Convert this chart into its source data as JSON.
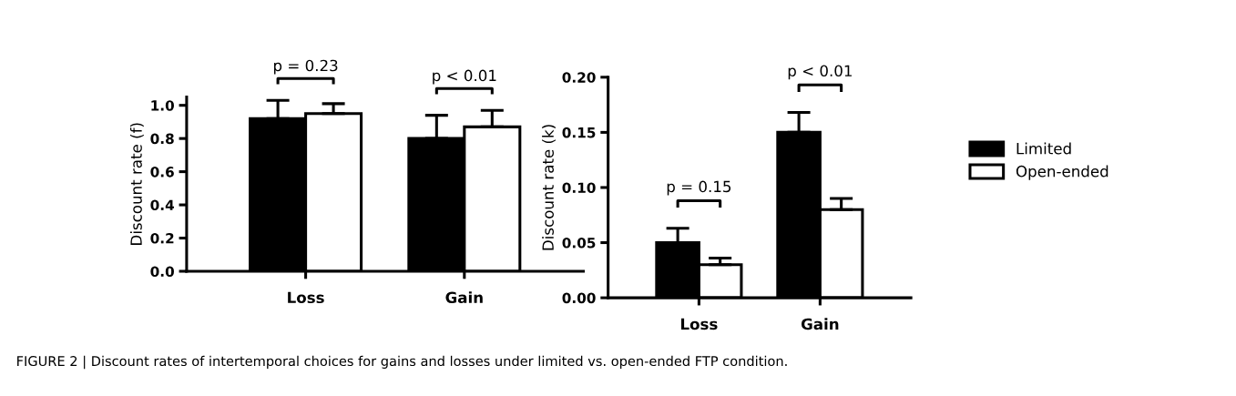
{
  "chart_data": [
    {
      "type": "bar",
      "ylabel": "Discount rate (f)",
      "categories": [
        "Loss",
        "Gain"
      ],
      "ylim": [
        0,
        1.05
      ],
      "yticks": [
        {
          "value": 0,
          "label": "0.0"
        },
        {
          "value": 0.2,
          "label": "0.2"
        },
        {
          "value": 0.4,
          "label": "0.4"
        },
        {
          "value": 0.6,
          "label": "0.6"
        },
        {
          "value": 0.8,
          "label": "0.8"
        },
        {
          "value": 1.0,
          "label": "1.0"
        }
      ],
      "series": [
        {
          "color": "#000000",
          "values": [
            0.92,
            0.8
          ],
          "errors": [
            [
              0.92,
              1.03
            ],
            [
              0.8,
              0.94
            ]
          ]
        },
        {
          "color": "#ffffff",
          "values": [
            0.95,
            0.87
          ],
          "errors": [
            [
              0.95,
              1.01
            ],
            [
              0.87,
              0.97
            ]
          ]
        }
      ],
      "annotations": [
        "p = 0.23",
        "p < 0.01"
      ],
      "grid": false,
      "legend": false
    },
    {
      "type": "bar",
      "ylabel": "Discount rate (k)",
      "categories": [
        "Loss",
        "Gain"
      ],
      "ylim": [
        0,
        0.2
      ],
      "yticks": [
        {
          "value": 0,
          "label": "0.00"
        },
        {
          "value": 0.05,
          "label": "0.05"
        },
        {
          "value": 0.1,
          "label": "0.10"
        },
        {
          "value": 0.15,
          "label": "0.15"
        },
        {
          "value": 0.2,
          "label": "0.20"
        }
      ],
      "series": [
        {
          "name": "Limited",
          "color": "#000000",
          "values": [
            0.05,
            0.15
          ],
          "errors": [
            [
              0.05,
              0.063
            ],
            [
              0.15,
              0.168
            ]
          ]
        },
        {
          "name": "Open-ended",
          "color": "#ffffff",
          "values": [
            0.03,
            0.08
          ],
          "errors": [
            [
              0.03,
              0.036
            ],
            [
              0.08,
              0.09
            ]
          ]
        }
      ],
      "annotations": [
        "p = 0.15",
        "p < 0.01",
        "FIGURE 2 | Discount rates of intertemporal choices for gains and losses under limited vs. open-ended FTP condition."
      ],
      "grid": false,
      "legend": "right"
    }
  ]
}
